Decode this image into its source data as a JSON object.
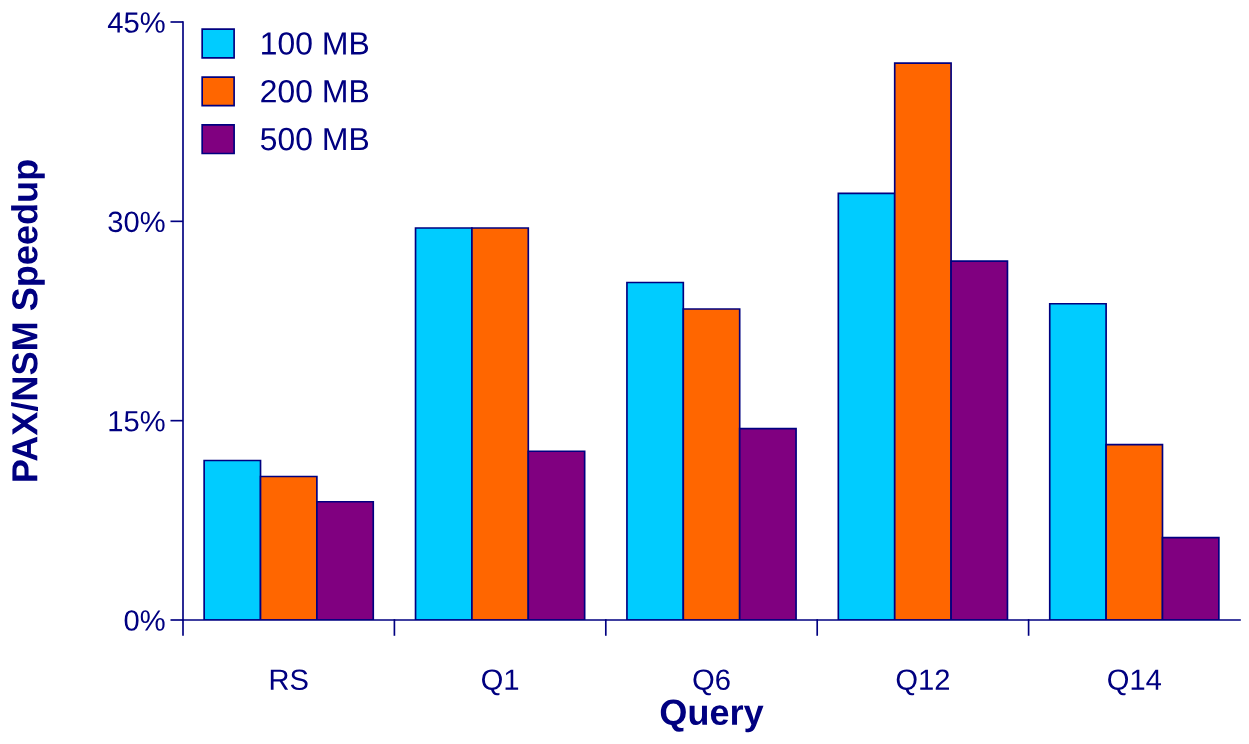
{
  "chart_data": {
    "type": "bar",
    "xlabel": "Query",
    "ylabel": "PAX/NSM Speedup",
    "categories": [
      "RS",
      "Q1",
      "Q6",
      "Q12",
      "Q14"
    ],
    "series": [
      {
        "name": "100 MB",
        "color": "#00ccff",
        "values": [
          12.0,
          29.5,
          25.4,
          32.1,
          23.8
        ]
      },
      {
        "name": "200 MB",
        "color": "#ff6600",
        "values": [
          10.8,
          29.5,
          23.4,
          41.9,
          13.2
        ]
      },
      {
        "name": "500 MB",
        "color": "#800080",
        "values": [
          8.9,
          12.7,
          14.4,
          27.0,
          6.2
        ]
      }
    ],
    "ylim": [
      0,
      45
    ],
    "yticks": [
      {
        "value": 0,
        "label": "0%"
      },
      {
        "value": 15,
        "label": "15%"
      },
      {
        "value": 30,
        "label": "30%"
      },
      {
        "value": 45,
        "label": "45%"
      }
    ],
    "grid": false,
    "legend": "top left"
  }
}
